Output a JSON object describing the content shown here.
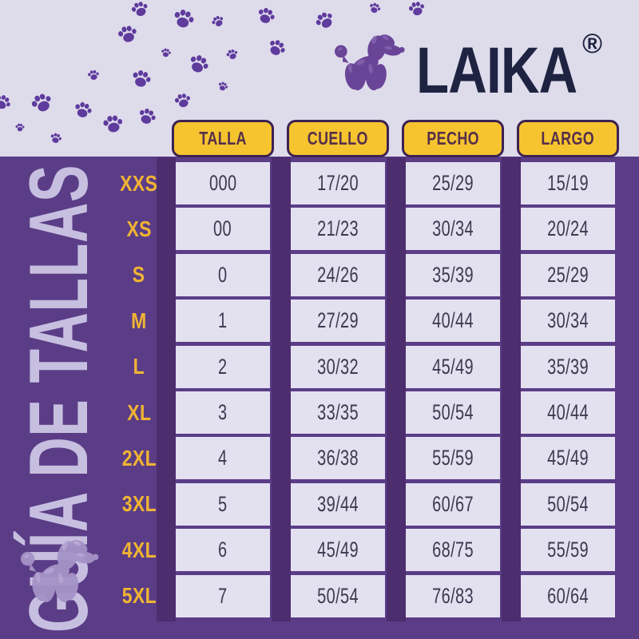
{
  "brand": {
    "name": "LAIKA",
    "registered_mark": "®"
  },
  "page_title": "GUÍA DE TALLAS",
  "chart_data": {
    "type": "table",
    "title": "GUÍA DE TALLAS",
    "columns": [
      "TALLA",
      "CUELLO",
      "PECHO",
      "LARGO"
    ],
    "row_labels": [
      "XXS",
      "XS",
      "S",
      "M",
      "L",
      "XL",
      "2XL",
      "3XL",
      "4XL",
      "5XL"
    ],
    "rows": [
      [
        "000",
        "17/20",
        "25/29",
        "15/19"
      ],
      [
        "00",
        "21/23",
        "30/34",
        "20/24"
      ],
      [
        "0",
        "24/26",
        "35/39",
        "25/29"
      ],
      [
        "1",
        "27/29",
        "40/44",
        "30/34"
      ],
      [
        "2",
        "30/32",
        "45/49",
        "35/39"
      ],
      [
        "3",
        "33/35",
        "50/54",
        "40/44"
      ],
      [
        "4",
        "36/38",
        "55/59",
        "45/49"
      ],
      [
        "5",
        "39/44",
        "60/67",
        "50/54"
      ],
      [
        "6",
        "45/49",
        "68/75",
        "55/59"
      ],
      [
        "7",
        "50/54",
        "76/83",
        "60/64"
      ]
    ]
  },
  "icons": {
    "logo_dog": "balloon-dog-icon",
    "paw": "paw-print-icon",
    "watermark_dog": "balloon-dog-watermark-icon"
  },
  "colors": {
    "background_top": "#dedbeb",
    "background_main": "#5b3d87",
    "column_stripe": "#4c2d6e",
    "header_fill": "#f6c42f",
    "header_border": "#3c2253",
    "header_text": "#56304a",
    "cell_fill": "#e3e0f0",
    "cell_text": "#3e3950",
    "row_label": "#f0b433",
    "brand_text": "#1f2342",
    "paw": "#5e3b9d",
    "logo_dog": "#6a4496",
    "watermark_dog": "#a593c7",
    "vertical_title": "#c7bfe0"
  }
}
